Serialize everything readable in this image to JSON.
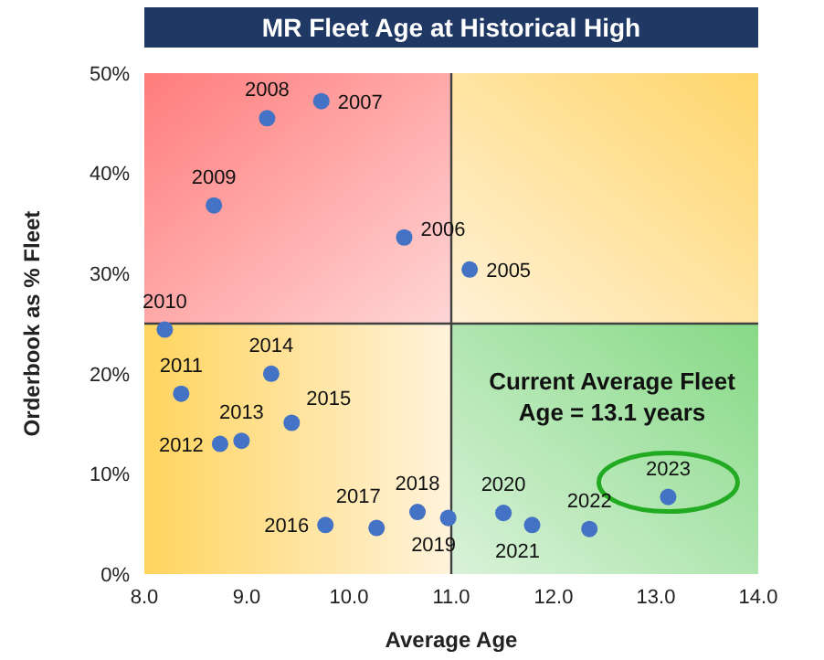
{
  "chart_data": {
    "type": "scatter",
    "title": "MR Fleet Age at Historical High",
    "xlabel": "Average Age",
    "ylabel": "Orderbook as % Fleet",
    "annotations": [
      "Current Average Fleet Age = 13.1 years",
      {
        "text": "2005",
        "x": 11.18,
        "y": 30.4
      },
      {
        "text": "2006",
        "x": 10.54,
        "y": 33.6
      },
      {
        "text": "2007",
        "x": 9.73,
        "y": 47.2
      },
      {
        "text": "2008",
        "x": 9.2,
        "y": 45.5
      },
      {
        "text": "2009",
        "x": 8.68,
        "y": 36.8
      },
      {
        "text": "2010",
        "x": 8.2,
        "y": 24.4
      },
      {
        "text": "2011",
        "x": 8.36,
        "y": 18.0
      },
      {
        "text": "2012",
        "x": 8.74,
        "y": 13.0
      },
      {
        "text": "2013",
        "x": 8.95,
        "y": 13.3
      },
      {
        "text": "2014",
        "x": 9.24,
        "y": 20.0
      },
      {
        "text": "2015",
        "x": 9.44,
        "y": 15.1
      },
      {
        "text": "2016",
        "x": 9.77,
        "y": 4.9
      },
      {
        "text": "2017",
        "x": 10.27,
        "y": 4.6
      },
      {
        "text": "2018",
        "x": 10.67,
        "y": 6.2
      },
      {
        "text": "2019",
        "x": 10.97,
        "y": 5.6
      },
      {
        "text": "2020",
        "x": 11.51,
        "y": 6.1
      },
      {
        "text": "2021",
        "x": 11.79,
        "y": 4.9
      },
      {
        "text": "2022",
        "x": 12.35,
        "y": 4.5
      },
      {
        "text": "2023",
        "x": 13.12,
        "y": 7.7
      }
    ],
    "x": [
      11.18,
      10.54,
      9.73,
      9.2,
      8.68,
      8.2,
      8.36,
      8.74,
      8.95,
      9.24,
      9.44,
      9.77,
      10.27,
      10.67,
      10.97,
      11.51,
      11.79,
      12.35,
      13.12
    ],
    "values": [
      30.4,
      33.6,
      47.2,
      45.5,
      36.8,
      24.4,
      18.0,
      13.0,
      13.3,
      20.0,
      15.1,
      4.9,
      4.6,
      6.2,
      5.6,
      6.1,
      4.9,
      4.5,
      7.7
    ],
    "color": "#4472c4",
    "marker": "circle",
    "grid": false,
    "legend": false,
    "xlim": [
      8,
      14
    ],
    "xticks": [
      {
        "value": 8,
        "label": "8.0"
      },
      {
        "value": 9,
        "label": "9.0"
      },
      {
        "value": 10,
        "label": "10.0"
      },
      {
        "value": 11,
        "label": "11.0"
      },
      {
        "value": 12,
        "label": "12.0"
      },
      {
        "value": 13,
        "label": "13.0"
      },
      {
        "value": 14,
        "label": "14.0"
      }
    ],
    "ylim": [
      0,
      50
    ],
    "yticks": [
      {
        "value": 0,
        "label": "0%"
      },
      {
        "value": 10,
        "label": "10%"
      },
      {
        "value": 20,
        "label": "20%"
      },
      {
        "value": 30,
        "label": "30%"
      },
      {
        "value": 40,
        "label": "40%"
      },
      {
        "value": 50,
        "label": "50%"
      }
    ],
    "ref_lines": [
      {
        "axis": "x",
        "value": 11,
        "color": "#404040"
      },
      {
        "axis": "y",
        "value": 25,
        "color": "#404040"
      }
    ]
  }
}
